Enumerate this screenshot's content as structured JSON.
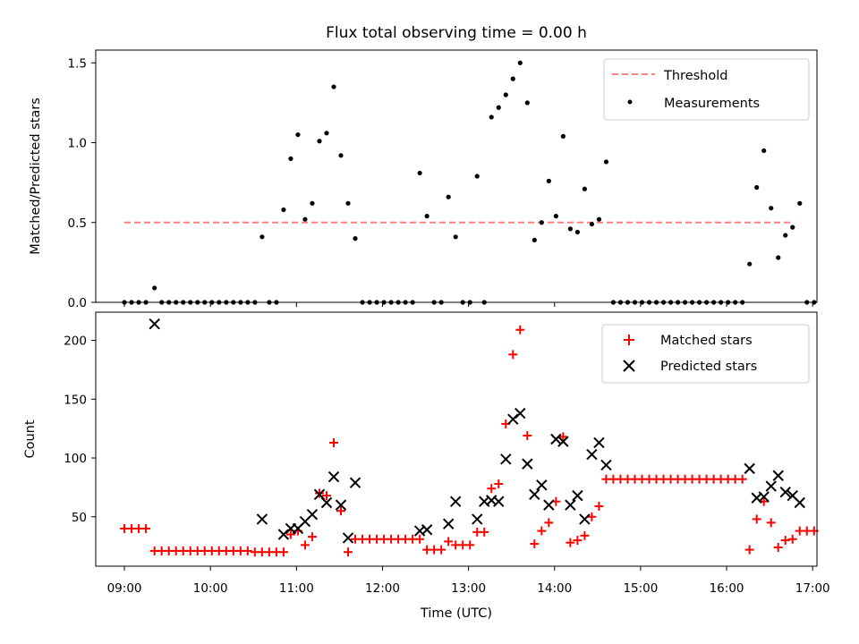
{
  "chart_data": [
    {
      "type": "scatter",
      "title": "Flux total observing time = 0.00 h",
      "xlabel": "",
      "ylabel": "Matched/Predicted stars",
      "xlim": [
        "08:40",
        "17:03"
      ],
      "ylim": [
        0,
        1.58
      ],
      "x_ticks": [
        "09:00",
        "10:00",
        "11:00",
        "12:00",
        "13:00",
        "14:00",
        "15:00",
        "16:00",
        "17:00"
      ],
      "y_ticks": [
        "0.0",
        "0.5",
        "1.0",
        "1.5"
      ],
      "threshold": {
        "name": "Threshold",
        "value": 0.5,
        "x_range": [
          "09:00",
          "16:45"
        ],
        "color": "#ff8080",
        "style": "dashed"
      },
      "series": [
        {
          "name": "Measurements",
          "marker": "dot",
          "color": "#000000",
          "points": [
            [
              "09:00",
              0
            ],
            [
              "09:05",
              0
            ],
            [
              "09:10",
              0
            ],
            [
              "09:15",
              0
            ],
            [
              "09:21",
              0.09
            ],
            [
              "09:26",
              0
            ],
            [
              "09:31",
              0
            ],
            [
              "09:36",
              0
            ],
            [
              "09:41",
              0
            ],
            [
              "09:46",
              0
            ],
            [
              "09:51",
              0
            ],
            [
              "09:56",
              0
            ],
            [
              "10:01",
              0
            ],
            [
              "10:06",
              0
            ],
            [
              "10:11",
              0
            ],
            [
              "10:16",
              0
            ],
            [
              "10:21",
              0
            ],
            [
              "10:26",
              0
            ],
            [
              "10:31",
              0
            ],
            [
              "10:36",
              0.41
            ],
            [
              "10:41",
              0
            ],
            [
              "10:46",
              0
            ],
            [
              "10:51",
              0.58
            ],
            [
              "10:56",
              0.9
            ],
            [
              "11:01",
              1.05
            ],
            [
              "11:06",
              0.52
            ],
            [
              "11:11",
              0.62
            ],
            [
              "11:16",
              1.01
            ],
            [
              "11:21",
              1.06
            ],
            [
              "11:26",
              1.35
            ],
            [
              "11:31",
              0.92
            ],
            [
              "11:36",
              0.62
            ],
            [
              "11:41",
              0.4
            ],
            [
              "11:46",
              0
            ],
            [
              "11:51",
              0
            ],
            [
              "11:56",
              0
            ],
            [
              "12:01",
              0
            ],
            [
              "12:06",
              0
            ],
            [
              "12:11",
              0
            ],
            [
              "12:16",
              0
            ],
            [
              "12:21",
              0
            ],
            [
              "12:26",
              0.81
            ],
            [
              "12:31",
              0.54
            ],
            [
              "12:36",
              0
            ],
            [
              "12:41",
              0
            ],
            [
              "12:46",
              0.66
            ],
            [
              "12:51",
              0.41
            ],
            [
              "12:56",
              0
            ],
            [
              "13:01",
              0
            ],
            [
              "13:06",
              0.79
            ],
            [
              "13:11",
              0
            ],
            [
              "13:16",
              1.16
            ],
            [
              "13:21",
              1.22
            ],
            [
              "13:26",
              1.3
            ],
            [
              "13:31",
              1.4
            ],
            [
              "13:36",
              1.5
            ],
            [
              "13:41",
              1.25
            ],
            [
              "13:46",
              0.39
            ],
            [
              "13:51",
              0.5
            ],
            [
              "13:56",
              0.76
            ],
            [
              "14:01",
              0.54
            ],
            [
              "14:06",
              1.04
            ],
            [
              "14:11",
              0.46
            ],
            [
              "14:16",
              0.44
            ],
            [
              "14:21",
              0.71
            ],
            [
              "14:26",
              0.49
            ],
            [
              "14:31",
              0.52
            ],
            [
              "14:36",
              0.88
            ],
            [
              "14:41",
              0
            ],
            [
              "14:46",
              0
            ],
            [
              "14:51",
              0
            ],
            [
              "14:56",
              0
            ],
            [
              "15:01",
              0
            ],
            [
              "15:06",
              0
            ],
            [
              "15:11",
              0
            ],
            [
              "15:16",
              0
            ],
            [
              "15:21",
              0
            ],
            [
              "15:26",
              0
            ],
            [
              "15:31",
              0
            ],
            [
              "15:36",
              0
            ],
            [
              "15:41",
              0
            ],
            [
              "15:46",
              0
            ],
            [
              "15:51",
              0
            ],
            [
              "15:56",
              0
            ],
            [
              "16:01",
              0
            ],
            [
              "16:06",
              0
            ],
            [
              "16:11",
              0
            ],
            [
              "16:16",
              0.24
            ],
            [
              "16:21",
              0.72
            ],
            [
              "16:26",
              0.95
            ],
            [
              "16:31",
              0.59
            ],
            [
              "16:36",
              0.28
            ],
            [
              "16:41",
              0.42
            ],
            [
              "16:46",
              0.47
            ],
            [
              "16:51",
              0.62
            ],
            [
              "16:56",
              0
            ],
            [
              "17:01",
              0
            ]
          ]
        }
      ],
      "legend": {
        "position": "top-right",
        "entries": [
          "Threshold",
          "Measurements"
        ]
      },
      "grid": false
    },
    {
      "type": "scatter",
      "title": "",
      "xlabel": "Time (UTC)",
      "ylabel": "Count",
      "xlim": [
        "08:40",
        "17:03"
      ],
      "ylim": [
        8,
        224
      ],
      "x_ticks": [
        "09:00",
        "10:00",
        "11:00",
        "12:00",
        "13:00",
        "14:00",
        "15:00",
        "16:00",
        "17:00"
      ],
      "y_ticks": [
        "50",
        "100",
        "150",
        "200"
      ],
      "series": [
        {
          "name": "Matched stars",
          "marker": "plus",
          "color": "#ff0000",
          "points": [
            [
              "09:00",
              40
            ],
            [
              "09:05",
              40
            ],
            [
              "09:10",
              40
            ],
            [
              "09:15",
              40
            ],
            [
              "09:21",
              21
            ],
            [
              "09:26",
              21
            ],
            [
              "09:31",
              21
            ],
            [
              "09:36",
              21
            ],
            [
              "09:41",
              21
            ],
            [
              "09:46",
              21
            ],
            [
              "09:51",
              21
            ],
            [
              "09:56",
              21
            ],
            [
              "10:01",
              21
            ],
            [
              "10:06",
              21
            ],
            [
              "10:11",
              21
            ],
            [
              "10:16",
              21
            ],
            [
              "10:21",
              21
            ],
            [
              "10:26",
              21
            ],
            [
              "10:31",
              20
            ],
            [
              "10:36",
              20
            ],
            [
              "10:41",
              20
            ],
            [
              "10:46",
              20
            ],
            [
              "10:51",
              20
            ],
            [
              "10:56",
              35
            ],
            [
              "11:01",
              38
            ],
            [
              "11:06",
              26
            ],
            [
              "11:11",
              33
            ],
            [
              "11:16",
              70
            ],
            [
              "11:21",
              68
            ],
            [
              "11:26",
              113
            ],
            [
              "11:31",
              55
            ],
            [
              "11:36",
              20
            ],
            [
              "11:41",
              31
            ],
            [
              "11:46",
              31
            ],
            [
              "11:51",
              31
            ],
            [
              "11:56",
              31
            ],
            [
              "12:01",
              31
            ],
            [
              "12:06",
              31
            ],
            [
              "12:11",
              31
            ],
            [
              "12:16",
              31
            ],
            [
              "12:21",
              31
            ],
            [
              "12:26",
              31
            ],
            [
              "12:31",
              22
            ],
            [
              "12:36",
              22
            ],
            [
              "12:41",
              22
            ],
            [
              "12:46",
              29
            ],
            [
              "12:51",
              26
            ],
            [
              "12:56",
              26
            ],
            [
              "13:01",
              26
            ],
            [
              "13:06",
              37
            ],
            [
              "13:11",
              37
            ],
            [
              "13:16",
              74
            ],
            [
              "13:21",
              78
            ],
            [
              "13:26",
              129
            ],
            [
              "13:31",
              188
            ],
            [
              "13:36",
              209
            ],
            [
              "13:41",
              119
            ],
            [
              "13:46",
              27
            ],
            [
              "13:51",
              38
            ],
            [
              "13:56",
              45
            ],
            [
              "14:01",
              63
            ],
            [
              "14:06",
              118
            ],
            [
              "14:11",
              28
            ],
            [
              "14:16",
              30
            ],
            [
              "14:21",
              34
            ],
            [
              "14:26",
              50
            ],
            [
              "14:31",
              59
            ],
            [
              "14:36",
              82
            ],
            [
              "14:41",
              82
            ],
            [
              "14:46",
              82
            ],
            [
              "14:51",
              82
            ],
            [
              "14:56",
              82
            ],
            [
              "15:01",
              82
            ],
            [
              "15:06",
              82
            ],
            [
              "15:11",
              82
            ],
            [
              "15:16",
              82
            ],
            [
              "15:21",
              82
            ],
            [
              "15:26",
              82
            ],
            [
              "15:31",
              82
            ],
            [
              "15:36",
              82
            ],
            [
              "15:41",
              82
            ],
            [
              "15:46",
              82
            ],
            [
              "15:51",
              82
            ],
            [
              "15:56",
              82
            ],
            [
              "16:01",
              82
            ],
            [
              "16:06",
              82
            ],
            [
              "16:11",
              82
            ],
            [
              "16:16",
              22
            ],
            [
              "16:21",
              48
            ],
            [
              "16:26",
              63
            ],
            [
              "16:31",
              45
            ],
            [
              "16:36",
              24
            ],
            [
              "16:41",
              30
            ],
            [
              "16:46",
              31
            ],
            [
              "16:51",
              38
            ],
            [
              "16:56",
              38
            ],
            [
              "17:01",
              38
            ]
          ]
        },
        {
          "name": "Predicted stars",
          "marker": "x",
          "color": "#000000",
          "points": [
            [
              "09:21",
              214
            ],
            [
              "10:36",
              48
            ],
            [
              "10:51",
              35
            ],
            [
              "10:56",
              40
            ],
            [
              "11:01",
              40
            ],
            [
              "11:06",
              46
            ],
            [
              "11:11",
              52
            ],
            [
              "11:16",
              69
            ],
            [
              "11:21",
              62
            ],
            [
              "11:26",
              84
            ],
            [
              "11:31",
              60
            ],
            [
              "11:36",
              32
            ],
            [
              "11:41",
              79
            ],
            [
              "12:26",
              38
            ],
            [
              "12:31",
              39
            ],
            [
              "12:46",
              44
            ],
            [
              "12:51",
              63
            ],
            [
              "13:06",
              48
            ],
            [
              "13:11",
              63
            ],
            [
              "13:16",
              64
            ],
            [
              "13:21",
              63
            ],
            [
              "13:26",
              99
            ],
            [
              "13:31",
              133
            ],
            [
              "13:36",
              138
            ],
            [
              "13:41",
              95
            ],
            [
              "13:46",
              69
            ],
            [
              "13:51",
              77
            ],
            [
              "13:56",
              60
            ],
            [
              "14:01",
              116
            ],
            [
              "14:06",
              114
            ],
            [
              "14:11",
              60
            ],
            [
              "14:16",
              68
            ],
            [
              "14:21",
              48
            ],
            [
              "14:26",
              103
            ],
            [
              "14:31",
              113
            ],
            [
              "14:36",
              94
            ],
            [
              "16:16",
              91
            ],
            [
              "16:21",
              66
            ],
            [
              "16:26",
              67
            ],
            [
              "16:31",
              76
            ],
            [
              "16:36",
              85
            ],
            [
              "16:41",
              71
            ],
            [
              "16:46",
              68
            ],
            [
              "16:51",
              62
            ]
          ]
        }
      ],
      "legend": {
        "position": "top-right",
        "entries": [
          "Matched stars",
          "Predicted stars"
        ]
      },
      "grid": false
    }
  ]
}
